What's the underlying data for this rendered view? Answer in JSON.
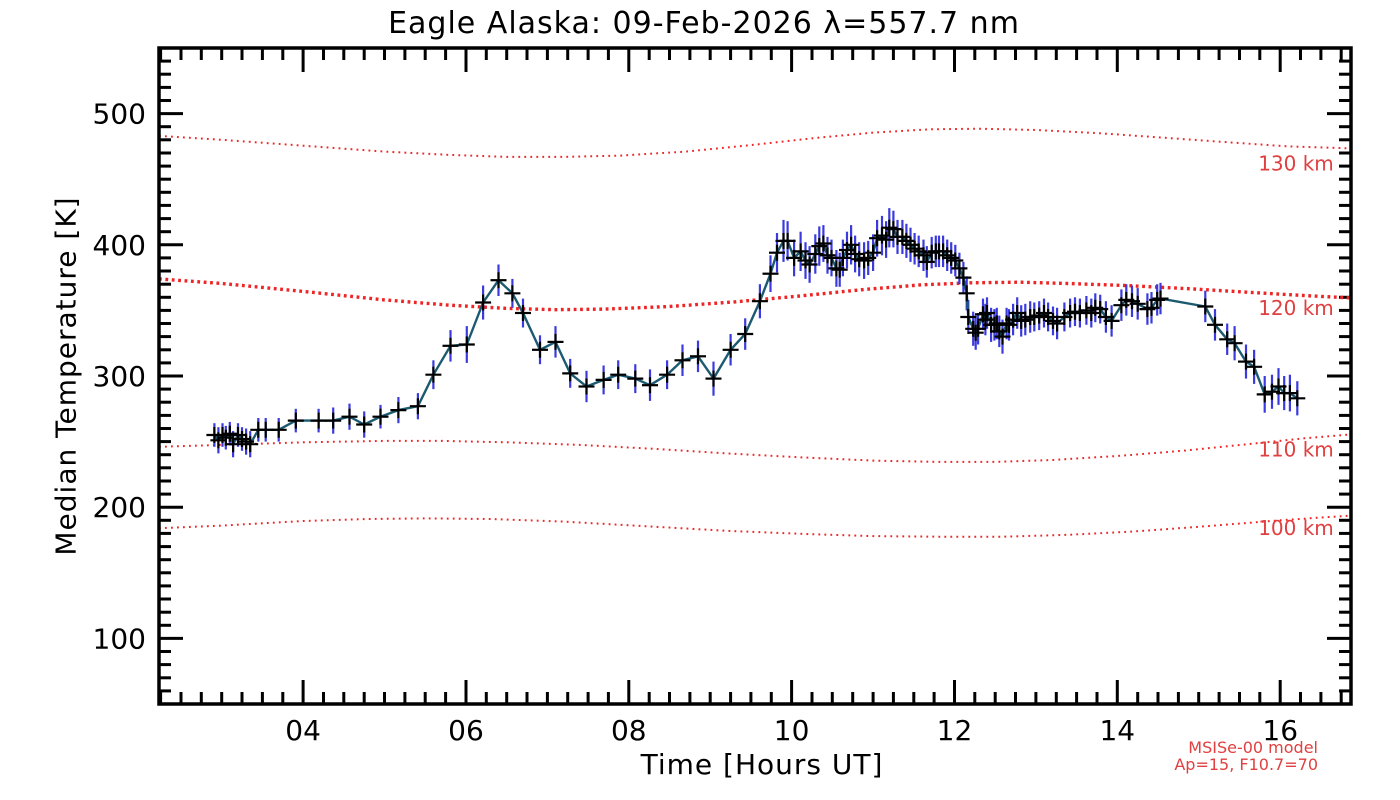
{
  "title": "Eagle Alaska: 09-Feb-2026 λ=557.7 nm",
  "annotation": {
    "line1": "MSISe-00 model",
    "line2": "Ap=15, F10.7=70"
  },
  "colors": {
    "data_line": "#1b5a70",
    "error_bar": "#3b3bdd",
    "marker": "#000000",
    "model_line": "#ee2525",
    "model_label": "#e04040",
    "axis": "#000000"
  },
  "chart_data": {
    "type": "line",
    "title": "Eagle Alaska: 09-Feb-2026 λ=557.7 nm",
    "xlabel": "Time [Hours UT]",
    "ylabel": "Median Temperature [K]",
    "xlim": [
      2.23,
      16.87
    ],
    "ylim": [
      50,
      550
    ],
    "grid": false,
    "x_ticks": [
      4,
      6,
      8,
      10,
      12,
      14,
      16
    ],
    "x_tick_labels": [
      "04",
      "06",
      "08",
      "10",
      "12",
      "14",
      "16"
    ],
    "x_minor_step": 0.25,
    "y_ticks": [
      100,
      200,
      300,
      400,
      500
    ],
    "y_tick_labels": [
      "100",
      "200",
      "300",
      "400",
      "500"
    ],
    "y_minor_step": 10,
    "measured": {
      "name": "median temperature with error bars",
      "marker": "plus",
      "points": [
        [
          2.91,
          255,
          9
        ],
        [
          2.96,
          251,
          10
        ],
        [
          3.01,
          255,
          9
        ],
        [
          3.05,
          253,
          9
        ],
        [
          3.1,
          256,
          9
        ],
        [
          3.14,
          248,
          10
        ],
        [
          3.2,
          255,
          9
        ],
        [
          3.25,
          252,
          9
        ],
        [
          3.3,
          250,
          10
        ],
        [
          3.35,
          248,
          10
        ],
        [
          3.45,
          259,
          9
        ],
        [
          3.54,
          259,
          9
        ],
        [
          3.7,
          259,
          9
        ],
        [
          3.91,
          266,
          9
        ],
        [
          4.19,
          266,
          9
        ],
        [
          4.37,
          266,
          10
        ],
        [
          4.57,
          269,
          10
        ],
        [
          4.75,
          263,
          10
        ],
        [
          4.95,
          269,
          9
        ],
        [
          5.17,
          274,
          10
        ],
        [
          5.41,
          277,
          10
        ],
        [
          5.6,
          301,
          11
        ],
        [
          5.81,
          323,
          12
        ],
        [
          6.01,
          324,
          14
        ],
        [
          6.21,
          356,
          13
        ],
        [
          6.4,
          373,
          12
        ],
        [
          6.57,
          363,
          11
        ],
        [
          6.7,
          348,
          11
        ],
        [
          6.91,
          320,
          11
        ],
        [
          7.1,
          326,
          12
        ],
        [
          7.28,
          302,
          11
        ],
        [
          7.48,
          292,
          12
        ],
        [
          7.69,
          297,
          11
        ],
        [
          7.87,
          301,
          11
        ],
        [
          8.08,
          298,
          11
        ],
        [
          8.26,
          293,
          12
        ],
        [
          8.47,
          301,
          11
        ],
        [
          8.66,
          312,
          12
        ],
        [
          8.85,
          315,
          12
        ],
        [
          9.04,
          298,
          13
        ],
        [
          9.25,
          320,
          12
        ],
        [
          9.43,
          332,
          12
        ],
        [
          9.61,
          357,
          13
        ],
        [
          9.74,
          378,
          14
        ],
        [
          9.82,
          394,
          15
        ],
        [
          9.9,
          403,
          16
        ],
        [
          9.95,
          403,
          15
        ],
        [
          10.03,
          390,
          14
        ],
        [
          10.11,
          395,
          15
        ],
        [
          10.17,
          388,
          14
        ],
        [
          10.22,
          385,
          14
        ],
        [
          10.29,
          393,
          15
        ],
        [
          10.34,
          399,
          15
        ],
        [
          10.39,
          401,
          14
        ],
        [
          10.44,
          392,
          14
        ],
        [
          10.49,
          390,
          14
        ],
        [
          10.55,
          382,
          14
        ],
        [
          10.59,
          381,
          13
        ],
        [
          10.63,
          390,
          14
        ],
        [
          10.68,
          396,
          14
        ],
        [
          10.73,
          400,
          15
        ],
        [
          10.78,
          393,
          14
        ],
        [
          10.83,
          389,
          13
        ],
        [
          10.89,
          388,
          14
        ],
        [
          10.94,
          390,
          13
        ],
        [
          11.0,
          394,
          14
        ],
        [
          11.05,
          405,
          14
        ],
        [
          11.11,
          407,
          15
        ],
        [
          11.16,
          404,
          14
        ],
        [
          11.2,
          413,
          15
        ],
        [
          11.25,
          412,
          14
        ],
        [
          11.3,
          406,
          13
        ],
        [
          11.36,
          406,
          13
        ],
        [
          11.41,
          403,
          13
        ],
        [
          11.46,
          400,
          13
        ],
        [
          11.51,
          397,
          12
        ],
        [
          11.56,
          395,
          12
        ],
        [
          11.62,
          392,
          12
        ],
        [
          11.66,
          387,
          12
        ],
        [
          11.72,
          394,
          12
        ],
        [
          11.77,
          395,
          12
        ],
        [
          11.81,
          395,
          12
        ],
        [
          11.86,
          395,
          12
        ],
        [
          11.91,
          392,
          12
        ],
        [
          11.96,
          390,
          12
        ],
        [
          12.01,
          388,
          12
        ],
        [
          12.06,
          382,
          12
        ],
        [
          12.11,
          375,
          12
        ],
        [
          12.15,
          363,
          13
        ],
        [
          12.17,
          345,
          13
        ],
        [
          12.23,
          336,
          13
        ],
        [
          12.26,
          333,
          13
        ],
        [
          12.29,
          336,
          12
        ],
        [
          12.35,
          347,
          12
        ],
        [
          12.38,
          343,
          12
        ],
        [
          12.4,
          348,
          12
        ],
        [
          12.45,
          339,
          13
        ],
        [
          12.49,
          339,
          12
        ],
        [
          12.52,
          340,
          12
        ],
        [
          12.55,
          334,
          12
        ],
        [
          12.59,
          330,
          13
        ],
        [
          12.64,
          340,
          12
        ],
        [
          12.67,
          339,
          12
        ],
        [
          12.72,
          343,
          12
        ],
        [
          12.77,
          348,
          12
        ],
        [
          12.82,
          342,
          12
        ],
        [
          12.87,
          343,
          12
        ],
        [
          12.93,
          345,
          12
        ],
        [
          12.98,
          345,
          11
        ],
        [
          13.04,
          346,
          11
        ],
        [
          13.1,
          348,
          11
        ],
        [
          13.15,
          345,
          11
        ],
        [
          13.21,
          342,
          11
        ],
        [
          13.26,
          340,
          12
        ],
        [
          13.35,
          345,
          11
        ],
        [
          13.42,
          348,
          11
        ],
        [
          13.48,
          349,
          11
        ],
        [
          13.54,
          348,
          11
        ],
        [
          13.62,
          350,
          11
        ],
        [
          13.68,
          348,
          11
        ],
        [
          13.73,
          352,
          11
        ],
        [
          13.79,
          351,
          11
        ],
        [
          13.86,
          345,
          12
        ],
        [
          13.93,
          342,
          12
        ],
        [
          14.05,
          354,
          12
        ],
        [
          14.11,
          358,
          12
        ],
        [
          14.18,
          357,
          12
        ],
        [
          14.25,
          355,
          12
        ],
        [
          14.37,
          351,
          12
        ],
        [
          14.42,
          352,
          12
        ],
        [
          14.49,
          358,
          12
        ],
        [
          14.53,
          359,
          12
        ],
        [
          15.08,
          353,
          12
        ],
        [
          15.2,
          339,
          12
        ],
        [
          15.35,
          328,
          12
        ],
        [
          15.44,
          325,
          13
        ],
        [
          15.58,
          311,
          13
        ],
        [
          15.68,
          307,
          13
        ],
        [
          15.81,
          286,
          14
        ],
        [
          15.9,
          288,
          13
        ],
        [
          15.98,
          292,
          14
        ],
        [
          16.05,
          287,
          13
        ],
        [
          16.12,
          287,
          14
        ],
        [
          16.21,
          283,
          13
        ]
      ]
    },
    "model_curves": [
      {
        "name": "130 km",
        "label": "130 km",
        "label_at": [
          15.73,
          462
        ],
        "emphasis": false,
        "points": [
          [
            2.23,
            483
          ],
          [
            3.0,
            480
          ],
          [
            4.0,
            475.5
          ],
          [
            5.0,
            471
          ],
          [
            5.8,
            468.5
          ],
          [
            6.5,
            467
          ],
          [
            7.2,
            467
          ],
          [
            7.9,
            468
          ],
          [
            8.7,
            471
          ],
          [
            9.5,
            476
          ],
          [
            10.3,
            481.5
          ],
          [
            11.0,
            485.5
          ],
          [
            11.7,
            488
          ],
          [
            12.3,
            488.5
          ],
          [
            13.0,
            487.5
          ],
          [
            13.8,
            485
          ],
          [
            14.6,
            481.5
          ],
          [
            15.4,
            478
          ],
          [
            16.1,
            475
          ],
          [
            16.87,
            473.5
          ]
        ]
      },
      {
        "name": "120 km",
        "label": "120 km",
        "label_at": [
          15.73,
          352
        ],
        "emphasis": true,
        "points": [
          [
            2.23,
            374
          ],
          [
            3.0,
            370.5
          ],
          [
            4.0,
            364.5
          ],
          [
            5.0,
            358
          ],
          [
            5.8,
            354
          ],
          [
            6.5,
            351.5
          ],
          [
            7.1,
            350.5
          ],
          [
            7.7,
            351
          ],
          [
            8.5,
            353
          ],
          [
            9.3,
            356.5
          ],
          [
            10.1,
            361
          ],
          [
            10.9,
            366
          ],
          [
            11.6,
            369.5
          ],
          [
            12.2,
            371
          ],
          [
            12.8,
            371.5
          ],
          [
            13.4,
            370.5
          ],
          [
            14.1,
            369
          ],
          [
            14.9,
            366.5
          ],
          [
            15.7,
            363.5
          ],
          [
            16.4,
            361
          ],
          [
            16.87,
            359.5
          ]
        ]
      },
      {
        "name": "110 km",
        "label": "110 km",
        "label_at": [
          15.73,
          244
        ],
        "emphasis": false,
        "points": [
          [
            2.23,
            246
          ],
          [
            3.0,
            247.5
          ],
          [
            4.0,
            249.5
          ],
          [
            5.0,
            250.5
          ],
          [
            5.7,
            250.5
          ],
          [
            6.5,
            249.5
          ],
          [
            7.4,
            247.5
          ],
          [
            8.3,
            244.5
          ],
          [
            9.2,
            241
          ],
          [
            10.1,
            238
          ],
          [
            11.0,
            235.5
          ],
          [
            11.8,
            234.5
          ],
          [
            12.5,
            234.5
          ],
          [
            13.2,
            236
          ],
          [
            14.0,
            239
          ],
          [
            14.8,
            243
          ],
          [
            15.6,
            248
          ],
          [
            16.3,
            252.5
          ],
          [
            16.87,
            255.5
          ]
        ]
      },
      {
        "name": "100 km",
        "label": "100 km",
        "label_at": [
          15.73,
          184
        ],
        "emphasis": false,
        "points": [
          [
            2.23,
            184
          ],
          [
            3.0,
            186
          ],
          [
            4.0,
            189.5
          ],
          [
            4.8,
            191
          ],
          [
            5.5,
            191.5
          ],
          [
            6.3,
            191
          ],
          [
            7.2,
            189
          ],
          [
            8.2,
            185.5
          ],
          [
            9.2,
            182
          ],
          [
            10.2,
            179.5
          ],
          [
            11.0,
            178
          ],
          [
            11.8,
            177.5
          ],
          [
            12.6,
            177.5
          ],
          [
            13.4,
            179
          ],
          [
            14.2,
            181.5
          ],
          [
            15.1,
            185.5
          ],
          [
            16.0,
            190
          ],
          [
            16.6,
            192.5
          ],
          [
            16.87,
            193.5
          ]
        ]
      }
    ],
    "model_info": [
      "MSISe-00 model",
      "Ap=15, F10.7=70"
    ]
  }
}
